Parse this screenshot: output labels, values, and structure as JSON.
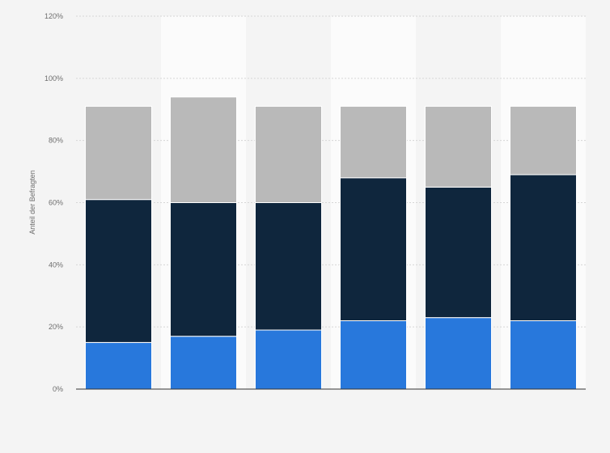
{
  "chart_data": {
    "type": "bar",
    "stacked": true,
    "title": "",
    "xlabel": "",
    "ylabel": "Anteil der Befragten",
    "ylim": [
      0,
      120
    ],
    "yticks": [
      0,
      20,
      40,
      60,
      80,
      100,
      120
    ],
    "ytick_labels": [
      "0%",
      "20%",
      "40%",
      "60%",
      "80%",
      "100%",
      "120%"
    ],
    "categories": [
      "",
      "",
      "",
      "",
      "",
      ""
    ],
    "series": [
      {
        "values": [
          15,
          17,
          19,
          22,
          23,
          22
        ],
        "color": "#2878dc"
      },
      {
        "values": [
          46,
          43,
          41,
          46,
          42,
          47
        ],
        "color": "#0f263d"
      },
      {
        "values": [
          30,
          34,
          31,
          23,
          26,
          22
        ],
        "color": "#b9b9b9"
      }
    ],
    "grid": true,
    "legend": "none"
  }
}
